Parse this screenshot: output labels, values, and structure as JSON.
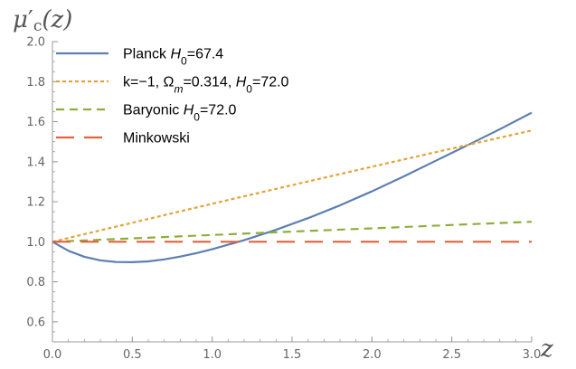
{
  "chart_data": {
    "type": "line",
    "title": "",
    "xlabel": "z",
    "ylabel": "μ′c(z)",
    "ylabel_parts": {
      "base": "μ",
      "prime": "′",
      "sub": "c",
      "arg": "(z)"
    },
    "xlim": [
      0,
      3
    ],
    "ylim": [
      0.5,
      2.0
    ],
    "xticks": [
      0.0,
      0.5,
      1.0,
      1.5,
      2.0,
      2.5,
      3.0
    ],
    "xtick_labels": [
      "0.0",
      "0.5",
      "1.0",
      "1.5",
      "2.0",
      "2.5",
      "3.0"
    ],
    "yticks": [
      0.6,
      0.8,
      1.0,
      1.2,
      1.4,
      1.6,
      1.8,
      2.0
    ],
    "ytick_labels": [
      "0.6",
      "0.8",
      "1.0",
      "1.2",
      "1.4",
      "1.6",
      "1.8",
      "2.0"
    ],
    "grid": false,
    "legend_position": "top-left",
    "series": [
      {
        "name": "Planck H0=67.4",
        "legend": [
          {
            "t": "Planck "
          },
          {
            "t": "H",
            "i": true
          },
          {
            "t": "0",
            "sub": true
          },
          {
            "t": "=67.4"
          }
        ],
        "color": "#5D7FB2",
        "style": "solid",
        "x": [
          0,
          0.1,
          0.2,
          0.3,
          0.4,
          0.5,
          0.6,
          0.7,
          0.8,
          0.9,
          1.0,
          1.2,
          1.4,
          1.6,
          1.8,
          2.0,
          2.2,
          2.4,
          2.6,
          2.8,
          3.0
        ],
        "y": [
          1.0,
          0.955,
          0.925,
          0.907,
          0.899,
          0.898,
          0.902,
          0.912,
          0.926,
          0.943,
          0.963,
          1.008,
          1.06,
          1.118,
          1.182,
          1.252,
          1.327,
          1.405,
          1.483,
          1.562,
          1.645
        ]
      },
      {
        "name": "k=−1, Ωm=0.314, H0=72.0",
        "legend": [
          {
            "t": "k=−1, Ω"
          },
          {
            "t": "m",
            "sub": true,
            "i": true
          },
          {
            "t": "=0.314, "
          },
          {
            "t": "H",
            "i": true
          },
          {
            "t": "0",
            "sub": true
          },
          {
            "t": "=72.0"
          }
        ],
        "color": "#E3A43A",
        "style": "dotted",
        "x": [
          0,
          0.5,
          1.0,
          1.5,
          2.0,
          2.5,
          3.0
        ],
        "y": [
          1.0,
          1.095,
          1.19,
          1.283,
          1.375,
          1.466,
          1.556
        ]
      },
      {
        "name": "Baryonic H0=72.0",
        "legend": [
          {
            "t": "Baryonic "
          },
          {
            "t": "H",
            "i": true
          },
          {
            "t": "0",
            "sub": true
          },
          {
            "t": "=72.0"
          }
        ],
        "color": "#8EAE3C",
        "style": "dashed",
        "x": [
          0,
          0.5,
          1.0,
          1.5,
          2.0,
          2.5,
          3.0
        ],
        "y": [
          1.0,
          1.017,
          1.034,
          1.051,
          1.067,
          1.084,
          1.1
        ]
      },
      {
        "name": "Minkowski",
        "legend": [
          {
            "t": "Minkowski"
          }
        ],
        "color": "#E0633C",
        "style": "longdash",
        "x": [
          0,
          3.0
        ],
        "y": [
          1.0,
          1.0
        ]
      }
    ]
  }
}
